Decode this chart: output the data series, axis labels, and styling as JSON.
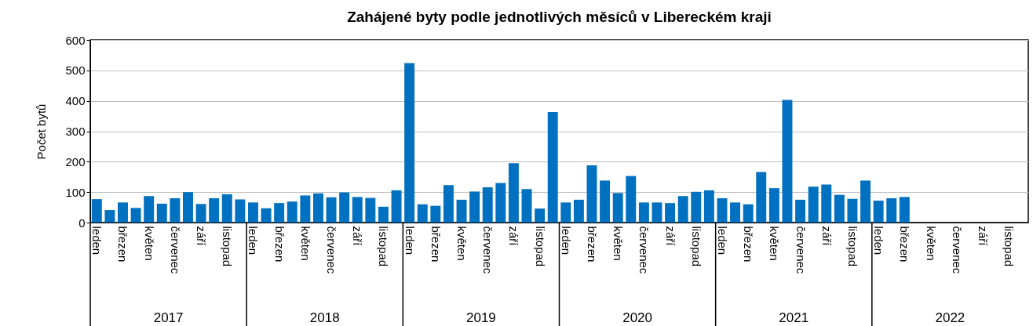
{
  "chart_data": {
    "type": "bar",
    "title": "Zahájené byty podle jednotlivých měsíců v Libereckém kraji",
    "ylabel": "Počet bytů",
    "categories": [
      "leden",
      null,
      "březen",
      null,
      "květen",
      null,
      "červenec",
      null,
      "září",
      null,
      "listopad",
      null,
      "leden",
      null,
      "březen",
      null,
      "květen",
      null,
      "červenec",
      null,
      "září",
      null,
      "listopad",
      null,
      "leden",
      null,
      "březen",
      null,
      "květen",
      null,
      "červenec",
      null,
      "září",
      null,
      "listopad",
      null,
      "leden",
      null,
      "březen",
      null,
      "květen",
      null,
      "červenec",
      null,
      "září",
      null,
      "listopad",
      null,
      "leden",
      null,
      "březen",
      null,
      "květen",
      null,
      "červenec",
      null,
      "září",
      null,
      "listopad",
      null,
      "leden",
      null,
      "březen",
      null,
      "květen",
      null,
      "červenec",
      null,
      "září",
      null,
      "listopad",
      null
    ],
    "values": [
      77,
      41,
      66,
      48,
      87,
      62,
      80,
      100,
      61,
      80,
      93,
      76,
      66,
      47,
      64,
      69,
      89,
      96,
      83,
      99,
      84,
      81,
      52,
      106,
      524,
      60,
      55,
      123,
      75,
      102,
      116,
      130,
      195,
      110,
      46,
      363,
      66,
      75,
      188,
      138,
      97,
      153,
      66,
      66,
      64,
      87,
      101,
      106,
      80,
      66,
      60,
      166,
      113,
      403,
      75,
      118,
      125,
      91,
      78,
      138,
      72,
      80,
      84,
      null,
      null,
      null,
      null,
      null,
      null,
      null,
      null,
      null
    ],
    "color": "#0070c0",
    "ylim": [
      0,
      600
    ],
    "yticks": [
      0,
      100,
      200,
      300,
      400,
      500,
      600
    ],
    "grid": "y",
    "annotations": [
      "2017",
      "2018",
      "2019",
      "2020",
      "2021",
      "2022"
    ]
  }
}
